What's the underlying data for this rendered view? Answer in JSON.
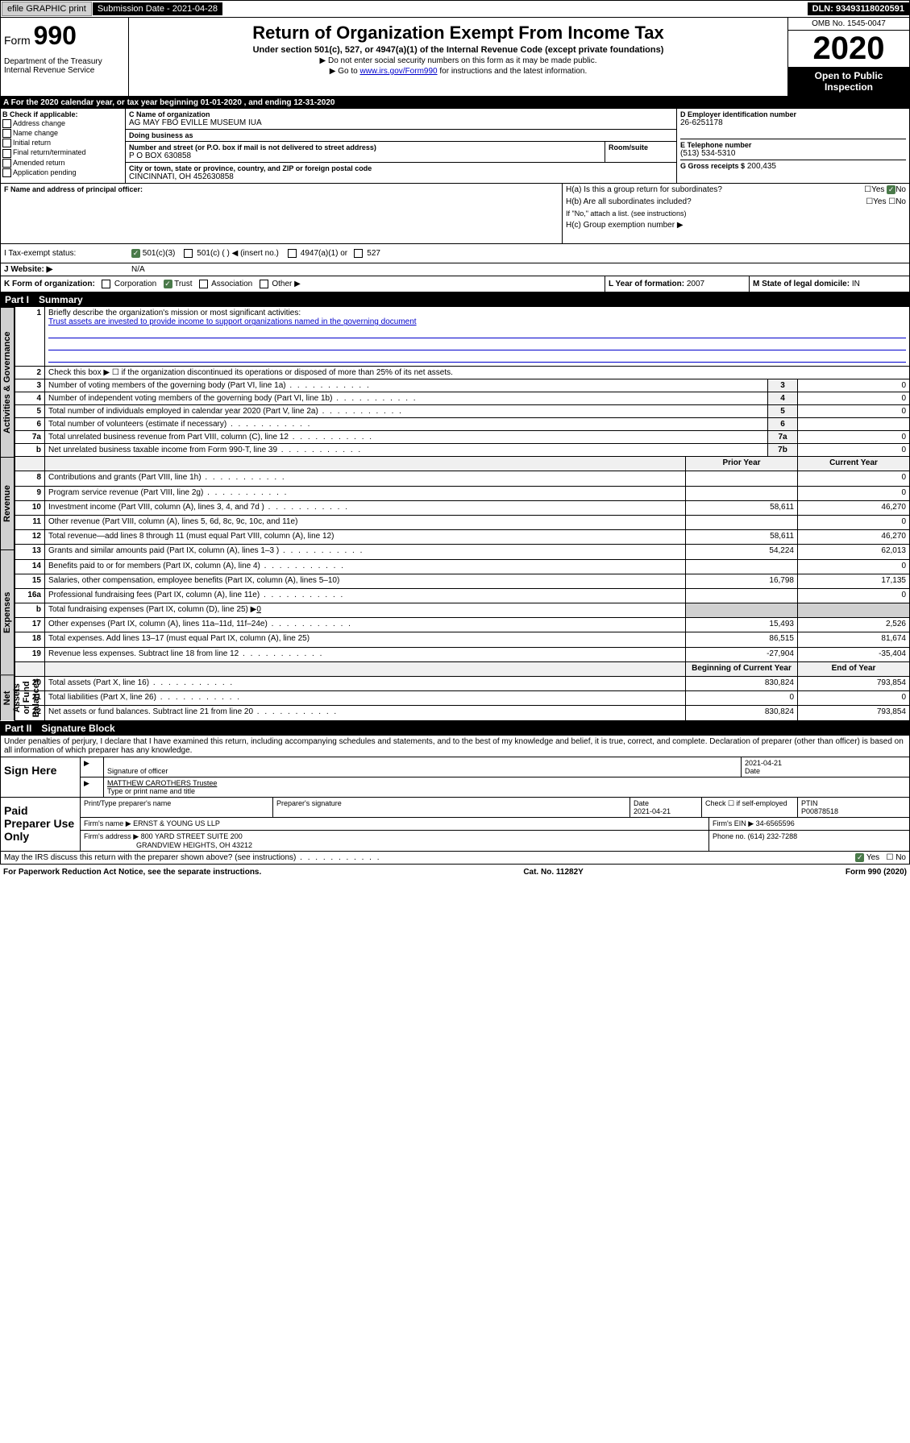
{
  "topbar": {
    "efile": "efile GRAPHIC print",
    "subLbl": "Submission Date - 2021-04-28",
    "dln": "DLN: 93493118020591"
  },
  "header": {
    "form": "Form",
    "num": "990",
    "title": "Return of Organization Exempt From Income Tax",
    "sub": "Under section 501(c), 527, or 4947(a)(1) of the Internal Revenue Code (except private foundations)",
    "note1": "▶ Do not enter social security numbers on this form as it may be made public.",
    "note2_pre": "▶ Go to ",
    "note2_link": "www.irs.gov/Form990",
    "note2_post": " for instructions and the latest information.",
    "dept": "Department of the Treasury\nInternal Revenue Service",
    "omb": "OMB No. 1545-0047",
    "year": "2020",
    "open": "Open to Public Inspection"
  },
  "periodA": "A For the 2020 calendar year, or tax year beginning 01-01-2020     , and ending 12-31-2020",
  "boxB": {
    "hdr": "B Check if applicable:",
    "items": [
      "Address change",
      "Name change",
      "Initial return",
      "Final return/terminated",
      "Amended return",
      "Application pending"
    ]
  },
  "boxC": {
    "nameLbl": "C Name of organization",
    "name": "AG MAY FBO EVILLE MUSEUM IUA",
    "dbaLbl": "Doing business as",
    "dba": "",
    "addrLbl": "Number and street (or P.O. box if mail is not delivered to street address)",
    "addr": "P O BOX 630858",
    "roomLbl": "Room/suite",
    "cityLbl": "City or town, state or province, country, and ZIP or foreign postal code",
    "city": "CINCINNATI, OH  452630858"
  },
  "boxD": {
    "lbl": "D Employer identification number",
    "val": "26-6251178"
  },
  "boxE": {
    "lbl": "E Telephone number",
    "val": "(513) 534-5310"
  },
  "boxG": {
    "lbl": "G Gross receipts $",
    "val": "200,435"
  },
  "boxF": {
    "lbl": "F  Name and address of principal officer:"
  },
  "boxH": {
    "a": "H(a)  Is this a group return for subordinates?",
    "aAns": "No",
    "b": "H(b)  Are all subordinates included?",
    "bNote": "If \"No,\" attach a list. (see instructions)",
    "c": "H(c)  Group exemption number ▶"
  },
  "boxI": {
    "lbl": "I    Tax-exempt status:",
    "c3": "501(c)(3)",
    "c": "501(c) (  ) ◀ (insert no.)",
    "a1": "4947(a)(1) or",
    "s527": "527"
  },
  "boxJ": {
    "lbl": "J    Website: ▶",
    "val": "N/A"
  },
  "boxK": {
    "lbl": "K Form of organization:",
    "opts": [
      "Corporation",
      "Trust",
      "Association",
      "Other ▶"
    ],
    "checked": 1
  },
  "boxL": {
    "lbl": "L Year of formation:",
    "val": "2007"
  },
  "boxM": {
    "lbl": "M State of legal domicile:",
    "val": "IN"
  },
  "part1": {
    "num": "Part I",
    "title": "Summary"
  },
  "vtabs": {
    "gov": "Activities & Governance",
    "rev": "Revenue",
    "exp": "Expenses",
    "net": "Net Assets or Fund Balances"
  },
  "lines": {
    "l1": "Briefly describe the organization's mission or most significant activities:",
    "l1v": "Trust assets are invested to provide income to support organizations named in the governing document",
    "l2": "Check this box ▶ ☐  if the organization discontinued its operations or disposed of more than 25% of its net assets.",
    "l3": "Number of voting members of the governing body (Part VI, line 1a)",
    "l4": "Number of independent voting members of the governing body (Part VI, line 1b)",
    "l5": "Total number of individuals employed in calendar year 2020 (Part V, line 2a)",
    "l6": "Total number of volunteers (estimate if necessary)",
    "l7a": "Total unrelated business revenue from Part VIII, column (C), line 12",
    "l7b": "Net unrelated business taxable income from Form 990-T, line 39",
    "l8": "Contributions and grants (Part VIII, line 1h)",
    "l9": "Program service revenue (Part VIII, line 2g)",
    "l10": "Investment income (Part VIII, column (A), lines 3, 4, and 7d )",
    "l11": "Other revenue (Part VIII, column (A), lines 5, 6d, 8c, 9c, 10c, and 11e)",
    "l12": "Total revenue—add lines 8 through 11 (must equal Part VIII, column (A), line 12)",
    "l13": "Grants and similar amounts paid (Part IX, column (A), lines 1–3 )",
    "l14": "Benefits paid to or for members (Part IX, column (A), line 4)",
    "l15": "Salaries, other compensation, employee benefits (Part IX, column (A), lines 5–10)",
    "l16a": "Professional fundraising fees (Part IX, column (A), line 11e)",
    "l16b": "Total fundraising expenses (Part IX, column (D), line 25) ▶",
    "l16bv": "0",
    "l17": "Other expenses (Part IX, column (A), lines 11a–11d, 11f–24e)",
    "l18": "Total expenses. Add lines 13–17 (must equal Part IX, column (A), line 25)",
    "l19": "Revenue less expenses. Subtract line 18 from line 12",
    "l20": "Total assets (Part X, line 16)",
    "l21": "Total liabilities (Part X, line 26)",
    "l22": "Net assets or fund balances. Subtract line 21 from line 20"
  },
  "colhdrs": {
    "py": "Prior Year",
    "cy": "Current Year",
    "bcy": "Beginning of Current Year",
    "eoy": "End of Year"
  },
  "vals": {
    "3": "0",
    "4": "0",
    "5": "0",
    "6": "",
    "7a": "0",
    "7b": "0",
    "8": {
      "p": "",
      "c": "0"
    },
    "9": {
      "p": "",
      "c": "0"
    },
    "10": {
      "p": "58,611",
      "c": "46,270"
    },
    "11": {
      "p": "",
      "c": "0"
    },
    "12": {
      "p": "58,611",
      "c": "46,270"
    },
    "13": {
      "p": "54,224",
      "c": "62,013"
    },
    "14": {
      "p": "",
      "c": "0"
    },
    "15": {
      "p": "16,798",
      "c": "17,135"
    },
    "16a": {
      "p": "",
      "c": "0"
    },
    "17": {
      "p": "15,493",
      "c": "2,526"
    },
    "18": {
      "p": "86,515",
      "c": "81,674"
    },
    "19": {
      "p": "-27,904",
      "c": "-35,404"
    },
    "20": {
      "p": "830,824",
      "c": "793,854"
    },
    "21": {
      "p": "0",
      "c": "0"
    },
    "22": {
      "p": "830,824",
      "c": "793,854"
    }
  },
  "part2": {
    "num": "Part II",
    "title": "Signature Block"
  },
  "perjury": "Under penalties of perjury, I declare that I have examined this return, including accompanying schedules and statements, and to the best of my knowledge and belief, it is true, correct, and complete. Declaration of preparer (other than officer) is based on all information of which preparer has any knowledge.",
  "sign": {
    "here": "Sign Here",
    "sigoff": "Signature of officer",
    "date": "2021-04-21",
    "dateLbl": "Date",
    "typed": "MATTHEW CAROTHERS  Trustee",
    "typedLbl": "Type or print name and title"
  },
  "paid": {
    "lbl": "Paid Preparer Use Only",
    "c1": "Print/Type preparer's name",
    "c2": "Preparer's signature",
    "c3": "Date",
    "c3v": "2021-04-21",
    "c4": "Check ☐ if self-employed",
    "c5": "PTIN",
    "c5v": "P00878518",
    "firmLbl": "Firm's name    ▶",
    "firm": "ERNST & YOUNG US LLP",
    "einLbl": "Firm's EIN ▶",
    "ein": "34-6565596",
    "addrLbl": "Firm's address ▶",
    "addr": "800 YARD STREET SUITE 200",
    "addr2": "GRANDVIEW HEIGHTS, OH  43212",
    "phLbl": "Phone no.",
    "ph": "(614) 232-7288"
  },
  "discuss": "May the IRS discuss this return with the preparer shown above? (see instructions)",
  "discussAns": "Yes",
  "footer": {
    "l": "For Paperwork Reduction Act Notice, see the separate instructions.",
    "c": "Cat. No. 11282Y",
    "r": "Form 990 (2020)"
  }
}
